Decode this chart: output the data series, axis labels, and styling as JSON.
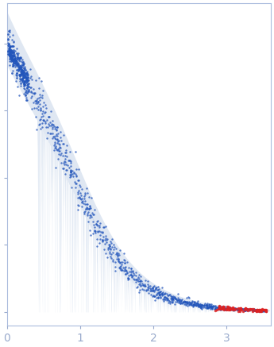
{
  "xlim": [
    0,
    3.6
  ],
  "x_ticks": [
    0,
    1,
    2,
    3
  ],
  "background_color": "#ffffff",
  "scatter_color_blue": "#2255bb",
  "scatter_color_red": "#dd2222",
  "band_fill_color": "#c5d4e8",
  "band_fill_alpha": 0.55,
  "seed": 42,
  "I0": 1.0,
  "Rg": 0.55,
  "power": 3.5,
  "ylim": [
    -0.05,
    1.15
  ]
}
